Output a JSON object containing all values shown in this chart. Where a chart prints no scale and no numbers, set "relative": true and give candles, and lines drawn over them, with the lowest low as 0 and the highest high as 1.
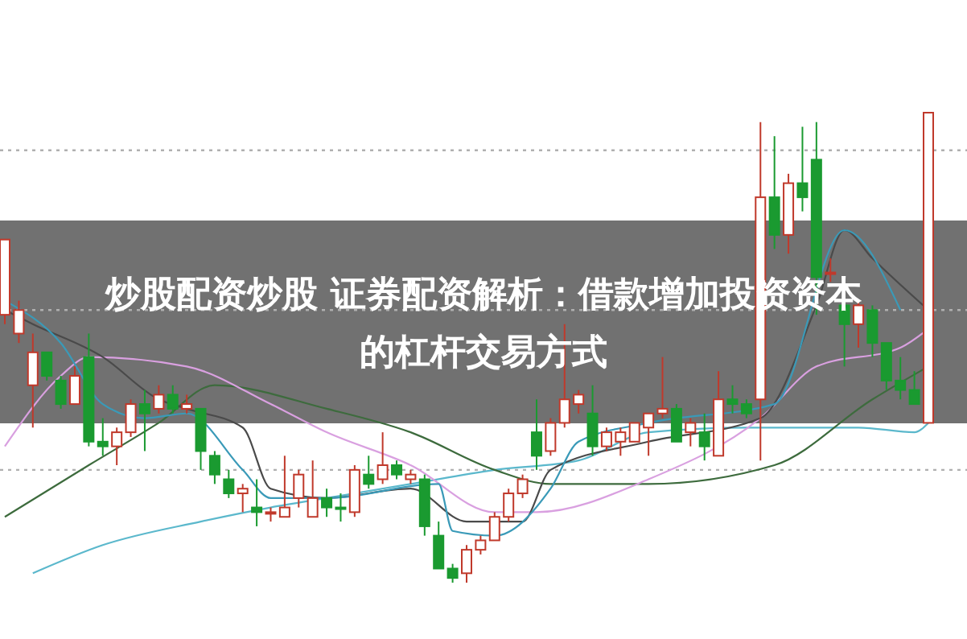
{
  "chart_data": {
    "type": "candlestick",
    "title": "炒股配资炒股 证券配资解析：借款增加投资资本的杠杆交易方式",
    "relative": true,
    "categories": [
      null,
      null,
      null,
      null,
      null,
      null,
      null,
      null,
      null,
      null,
      null,
      null,
      null,
      null,
      null,
      null,
      null,
      null,
      null,
      null,
      null,
      null,
      null,
      null,
      null,
      null,
      null,
      null,
      null,
      null,
      null,
      null,
      null,
      null,
      null,
      null,
      null,
      null,
      null,
      null,
      null,
      null,
      null,
      null,
      null,
      null,
      null,
      null,
      null,
      null,
      null,
      null,
      null,
      null,
      null,
      null,
      null,
      null,
      null,
      null,
      null,
      null,
      null,
      null,
      null,
      null,
      null
    ],
    "ohlc": [
      [
        0.57,
        0.73,
        0.55,
        0.73
      ],
      [
        0.53,
        0.6,
        0.51,
        0.58
      ],
      [
        0.42,
        0.53,
        0.33,
        0.49
      ],
      [
        0.49,
        0.49,
        0.43,
        0.44
      ],
      [
        0.43,
        0.44,
        0.37,
        0.38
      ],
      [
        0.38,
        0.46,
        0.38,
        0.44
      ],
      [
        0.48,
        0.53,
        0.29,
        0.3
      ],
      [
        0.3,
        0.35,
        0.27,
        0.29
      ],
      [
        0.29,
        0.33,
        0.25,
        0.32
      ],
      [
        0.32,
        0.39,
        0.31,
        0.38
      ],
      [
        0.38,
        0.41,
        0.28,
        0.36
      ],
      [
        0.37,
        0.42,
        0.36,
        0.4
      ],
      [
        0.4,
        0.42,
        0.36,
        0.37
      ],
      [
        0.37,
        0.4,
        0.36,
        0.38
      ],
      [
        0.37,
        0.37,
        0.24,
        0.28
      ],
      [
        0.27,
        0.28,
        0.21,
        0.23
      ],
      [
        0.22,
        0.24,
        0.18,
        0.19
      ],
      [
        0.19,
        0.21,
        0.15,
        0.2
      ],
      [
        0.16,
        0.22,
        0.12,
        0.15
      ],
      [
        0.15,
        0.16,
        0.13,
        0.15
      ],
      [
        0.14,
        0.27,
        0.14,
        0.16
      ],
      [
        0.18,
        0.24,
        0.16,
        0.23
      ],
      [
        0.14,
        0.26,
        0.14,
        0.18
      ],
      [
        0.18,
        0.2,
        0.14,
        0.16
      ],
      [
        0.16,
        0.19,
        0.13,
        0.16
      ],
      [
        0.15,
        0.25,
        0.14,
        0.24
      ],
      [
        0.23,
        0.27,
        0.2,
        0.21
      ],
      [
        0.22,
        0.32,
        0.21,
        0.25
      ],
      [
        0.25,
        0.26,
        0.22,
        0.23
      ],
      [
        0.22,
        0.24,
        0.21,
        0.23
      ],
      [
        0.22,
        0.23,
        0.1,
        0.12
      ],
      [
        0.1,
        0.13,
        0.03,
        0.03
      ],
      [
        0.03,
        0.04,
        0,
        0.01
      ],
      [
        0.02,
        0.08,
        0,
        0.07
      ],
      [
        0.07,
        0.1,
        0.06,
        0.09
      ],
      [
        0.09,
        0.15,
        0.09,
        0.14
      ],
      [
        0.14,
        0.2,
        0.13,
        0.19
      ],
      [
        0.19,
        0.23,
        0.18,
        0.22
      ],
      [
        0.32,
        0.39,
        0.24,
        0.27
      ],
      [
        0.28,
        0.35,
        0.27,
        0.34
      ],
      [
        0.34,
        0.55,
        0.33,
        0.39
      ],
      [
        0.38,
        0.41,
        0.36,
        0.4
      ],
      [
        0.36,
        0.42,
        0.27,
        0.29
      ],
      [
        0.29,
        0.33,
        0.28,
        0.32
      ],
      [
        0.3,
        0.33,
        0.27,
        0.32
      ],
      [
        0.3,
        0.34,
        0.3,
        0.34
      ],
      [
        0.33,
        0.36,
        0.27,
        0.36
      ],
      [
        0.36,
        0.48,
        0.35,
        0.37
      ],
      [
        0.37,
        0.38,
        0.3,
        0.3
      ],
      [
        0.32,
        0.35,
        0.29,
        0.34
      ],
      [
        0.32,
        0.36,
        0.26,
        0.29
      ],
      [
        0.27,
        0.45,
        0.27,
        0.39
      ],
      [
        0.39,
        0.42,
        0.36,
        0.38
      ],
      [
        0.38,
        0.39,
        0.35,
        0.36
      ],
      [
        0.39,
        0.98,
        0.26,
        0.82
      ],
      [
        0.82,
        0.95,
        0.71,
        0.74
      ],
      [
        0.74,
        0.87,
        0.7,
        0.85
      ],
      [
        0.85,
        0.97,
        0.79,
        0.82
      ],
      [
        0.9,
        0.98,
        0.57,
        0.65
      ],
      [
        0.66,
        0.69,
        0.64,
        0.66
      ],
      [
        0.59,
        0.6,
        0.46,
        0.55
      ],
      [
        0.55,
        0.6,
        0.5,
        0.59
      ],
      [
        0.58,
        0.59,
        0.48,
        0.51
      ],
      [
        0.51,
        0.51,
        0.41,
        0.43
      ],
      [
        0.43,
        0.48,
        0.39,
        0.41
      ],
      [
        0.41,
        0.45,
        0.38,
        0.38
      ],
      [
        0.34,
        1,
        0.34,
        1
      ]
    ],
    "colors": [
      "#c0392b",
      "#c0392b",
      "#c0392b",
      "#1a9a30",
      "#1a9a30",
      "#c0392b",
      "#1a9a30",
      "#1a9a30",
      "#c0392b",
      "#c0392b",
      "#1a9a30",
      "#c0392b",
      "#1a9a30",
      "#c0392b",
      "#1a9a30",
      "#1a9a30",
      "#1a9a30",
      "#c0392b",
      "#1a9a30",
      "#c0392b",
      "#c0392b",
      "#c0392b",
      "#c0392b",
      "#1a9a30",
      "#1a9a30",
      "#c0392b",
      "#1a9a30",
      "#c0392b",
      "#1a9a30",
      "#c0392b",
      "#1a9a30",
      "#1a9a30",
      "#1a9a30",
      "#c0392b",
      "#c0392b",
      "#c0392b",
      "#c0392b",
      "#c0392b",
      "#1a9a30",
      "#c0392b",
      "#c0392b",
      "#c0392b",
      "#1a9a30",
      "#c0392b",
      "#c0392b",
      "#c0392b",
      "#c0392b",
      "#c0392b",
      "#1a9a30",
      "#c0392b",
      "#1a9a30",
      "#c0392b",
      "#1a9a30",
      "#1a9a30",
      "#c0392b",
      "#1a9a30",
      "#c0392b",
      "#1a9a30",
      "#1a9a30",
      "#c0392b",
      "#1a9a30",
      "#c0392b",
      "#1a9a30",
      "#1a9a30",
      "#1a9a30",
      "#1a9a30",
      "#c0392b"
    ],
    "series": [
      {
        "type": "line",
        "color": "#5bb8cc",
        "values": [
          null,
          null,
          0.02,
          null,
          null,
          null,
          null,
          0.08,
          null,
          null,
          null,
          null,
          null,
          null,
          0.13,
          null,
          null,
          null,
          null,
          0.16,
          null,
          null,
          null,
          0.18,
          null,
          null,
          null,
          null,
          null,
          0.21,
          null,
          null,
          null,
          null,
          null,
          0.24,
          null,
          null,
          null,
          null,
          null,
          0.26,
          null,
          null,
          null,
          null,
          0.32,
          null,
          null,
          null,
          null,
          null,
          null,
          0.33,
          null,
          null,
          null,
          null,
          null,
          null,
          null,
          0.33,
          null,
          null,
          null,
          0.32,
          0.34
        ]
      },
      {
        "type": "line",
        "color": "#3d6b3d",
        "values": [
          0.14,
          null,
          null,
          null,
          null,
          null,
          0.25,
          null,
          null,
          null,
          null,
          0.34,
          null,
          null,
          null,
          0.42,
          null,
          null,
          null,
          null,
          null,
          null,
          null,
          0.37,
          null,
          null,
          null,
          null,
          null,
          0.32,
          null,
          null,
          null,
          null,
          null,
          0.24,
          null,
          null,
          null,
          0.21,
          null,
          null,
          null,
          null,
          null,
          null,
          0.21,
          null,
          null,
          null,
          null,
          null,
          null,
          null,
          null,
          0.25,
          null,
          null,
          null,
          null,
          null,
          null,
          0.39,
          null,
          null,
          null,
          0.46
        ]
      },
      {
        "type": "line",
        "color": "#d9a0e0",
        "values": [
          0.29,
          null,
          null,
          null,
          0.44,
          null,
          0.48,
          null,
          null,
          null,
          null,
          null,
          null,
          0.46,
          null,
          null,
          null,
          null,
          null,
          0.38,
          null,
          null,
          null,
          0.32,
          null,
          null,
          null,
          null,
          null,
          0.25,
          null,
          null,
          null,
          null,
          null,
          0.15,
          null,
          null,
          0.15,
          null,
          null,
          null,
          null,
          null,
          null,
          null,
          0.22,
          null,
          null,
          null,
          null,
          null,
          null,
          null,
          0.35,
          null,
          null,
          null,
          0.46,
          null,
          null,
          null,
          null,
          null,
          0.5,
          null,
          0.54
        ]
      },
      {
        "type": "line",
        "color": "#4a4a4a",
        "values": [
          0.58,
          null,
          0.55,
          null,
          null,
          null,
          null,
          0.48,
          null,
          null,
          null,
          0.39,
          null,
          0.37,
          null,
          null,
          null,
          0.33,
          null,
          0.2,
          null,
          null,
          null,
          0.18,
          null,
          null,
          null,
          null,
          null,
          0.2,
          null,
          null,
          null,
          0.13,
          null,
          null,
          null,
          0.13,
          null,
          0.24,
          null,
          null,
          null,
          null,
          null,
          null,
          0.3,
          null,
          null,
          null,
          null,
          null,
          null,
          null,
          0.35,
          null,
          null,
          null,
          0.59,
          null,
          0.75,
          null,
          0.69,
          null,
          null,
          null,
          0.58
        ]
      },
      {
        "type": "line",
        "color": "#3a9ab8",
        "values": [
          0.6,
          null,
          null,
          null,
          0.51,
          null,
          null,
          0.38,
          null,
          null,
          0.35,
          null,
          null,
          0.36,
          null,
          null,
          null,
          0.24,
          null,
          0.18,
          null,
          null,
          null,
          0.18,
          null,
          null,
          null,
          null,
          null,
          null,
          null,
          0.21,
          0.11,
          null,
          null,
          0.1,
          null,
          null,
          null,
          0.2,
          null,
          0.3,
          null,
          null,
          null,
          null,
          0.34,
          null,
          null,
          null,
          null,
          null,
          null,
          null,
          null,
          0.38,
          null,
          null,
          null,
          null,
          0.75,
          null,
          null,
          null,
          0.58,
          null,
          null
        ]
      }
    ],
    "ref_lines": [
      {
        "axis": "y",
        "value": 0.92,
        "color": "#b0b0b0",
        "line_style": "dotted"
      },
      {
        "axis": "y",
        "value": 0.58,
        "color": "#b0b0b0",
        "line_style": "dotted"
      },
      {
        "axis": "y",
        "value": 0.24,
        "color": "#b0b0b0",
        "line_style": "dotted"
      }
    ]
  }
}
